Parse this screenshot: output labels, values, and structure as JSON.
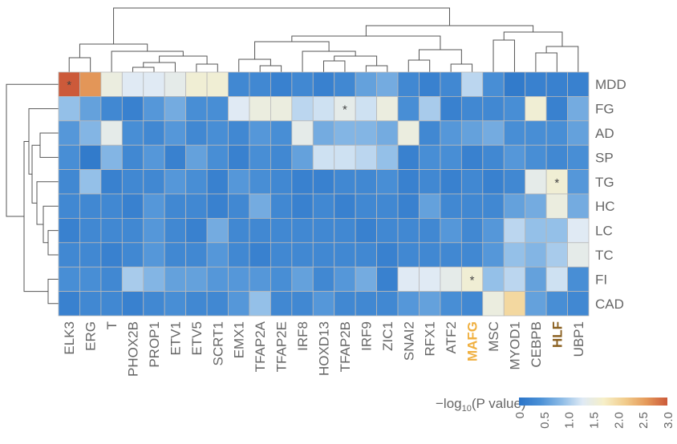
{
  "chart_data": {
    "type": "heatmap",
    "title": "",
    "columns": [
      "ELK3",
      "ERG",
      "T",
      "PHOX2B",
      "PROP1",
      "ETV1",
      "ETV5",
      "SCRT1",
      "EMX1",
      "TFAP2A",
      "TFAP2E",
      "IRF8",
      "HOXD13",
      "TFAP2B",
      "IRF9",
      "ZIC1",
      "SNAI2",
      "RFX1",
      "ATF2",
      "MAFG",
      "MSC",
      "MYOD1",
      "CEBPB",
      "HLF",
      "UBP1"
    ],
    "rows": [
      "MDD",
      "FG",
      "AD",
      "SP",
      "TG",
      "HC",
      "LC",
      "TC",
      "FI",
      "CAD"
    ],
    "values": [
      [
        3.0,
        2.6,
        1.5,
        1.3,
        1.3,
        1.4,
        1.6,
        1.6,
        0.3,
        0.3,
        0.2,
        0.3,
        0.2,
        0.3,
        0.6,
        0.7,
        0.3,
        0.2,
        0.3,
        1.1,
        0.4,
        0.1,
        0.2,
        0.2,
        0.2
      ],
      [
        0.9,
        0.6,
        0.3,
        0.2,
        0.5,
        0.7,
        0.4,
        0.4,
        1.3,
        1.5,
        1.5,
        1.1,
        1.2,
        1.4,
        1.2,
        1.5,
        0.4,
        1.0,
        0.2,
        0.3,
        0.3,
        0.4,
        1.6,
        0.2,
        0.7
      ],
      [
        0.5,
        0.8,
        1.4,
        0.4,
        0.3,
        0.5,
        0.3,
        0.4,
        0.3,
        0.5,
        0.4,
        1.4,
        0.7,
        0.8,
        0.8,
        0.7,
        1.5,
        0.3,
        0.5,
        0.6,
        0.7,
        0.4,
        0.4,
        0.4,
        0.6
      ],
      [
        0.4,
        0.1,
        0.8,
        0.3,
        0.5,
        0.2,
        0.6,
        0.4,
        0.2,
        0.4,
        0.3,
        0.6,
        1.2,
        1.2,
        1.1,
        0.9,
        0.2,
        0.4,
        0.4,
        0.2,
        0.3,
        0.5,
        0.4,
        0.3,
        0.4
      ],
      [
        0.3,
        0.9,
        0.2,
        0.3,
        0.3,
        0.5,
        0.4,
        0.2,
        0.5,
        0.4,
        0.3,
        0.2,
        0.2,
        0.3,
        0.3,
        0.4,
        0.2,
        0.3,
        0.2,
        0.3,
        0.2,
        0.3,
        1.4,
        1.6,
        0.5
      ],
      [
        0.3,
        0.3,
        0.3,
        0.2,
        0.5,
        0.3,
        0.3,
        0.2,
        0.3,
        0.7,
        0.3,
        0.2,
        0.3,
        0.2,
        0.3,
        0.3,
        0.2,
        0.6,
        0.3,
        0.3,
        0.3,
        0.6,
        0.7,
        1.5,
        0.7
      ],
      [
        0.2,
        0.3,
        0.3,
        0.3,
        0.5,
        0.3,
        0.2,
        0.7,
        0.3,
        0.3,
        0.3,
        0.3,
        0.3,
        0.3,
        0.2,
        0.3,
        0.3,
        0.3,
        0.5,
        0.3,
        0.5,
        1.1,
        0.9,
        0.9,
        1.3
      ],
      [
        0.3,
        0.3,
        0.2,
        0.3,
        0.5,
        0.3,
        0.3,
        0.5,
        0.3,
        0.2,
        0.3,
        0.3,
        0.3,
        0.3,
        0.3,
        0.2,
        0.3,
        0.3,
        0.3,
        0.3,
        0.5,
        0.9,
        0.8,
        1.0,
        1.4
      ],
      [
        0.4,
        0.4,
        0.3,
        1.0,
        0.8,
        0.6,
        0.6,
        0.5,
        0.5,
        0.5,
        0.4,
        0.6,
        0.3,
        0.5,
        0.7,
        0.2,
        1.3,
        1.3,
        1.4,
        1.6,
        0.9,
        1.1,
        0.6,
        1.2,
        0.4
      ],
      [
        0.2,
        0.3,
        0.3,
        0.2,
        0.3,
        0.4,
        0.3,
        0.3,
        0.5,
        0.9,
        0.3,
        0.3,
        0.5,
        0.3,
        0.3,
        0.3,
        0.5,
        0.6,
        0.4,
        0.3,
        1.5,
        2.0,
        0.6,
        0.4,
        0.3
      ]
    ],
    "significant": [
      {
        "row": "MDD",
        "column": "ELK3",
        "mark": "*"
      },
      {
        "row": "FG",
        "column": "TFAP2B",
        "mark": "*"
      },
      {
        "row": "TG",
        "column": "HLF",
        "mark": "*"
      },
      {
        "row": "FI",
        "column": "MAFG",
        "mark": "*"
      }
    ],
    "highlighted_columns": [
      "MAFG",
      "HLF"
    ],
    "colorbar": {
      "label_prefix": "−log",
      "label_subscript": "10",
      "label_suffix": "(P value)",
      "range": [
        0,
        3.0
      ],
      "ticks": [
        "0",
        "0.5",
        "1.0",
        "1.5",
        "2.0",
        "2.5",
        "3.0"
      ],
      "colors": [
        "#2b74c8",
        "#4a90d6",
        "#8cbbe6",
        "#dfeaf5",
        "#f6efc8",
        "#f1cc8c",
        "#e59a5a",
        "#cc5a3a"
      ]
    },
    "column_dendrogram": true,
    "row_dendrogram": true
  },
  "colors": {
    "label": "#666666",
    "highlight_mafg": "#f0b040",
    "highlight_hlf": "#8a6020",
    "grid": "#b8b8b8",
    "dendrogram": "#555555",
    "star": "#444444"
  }
}
